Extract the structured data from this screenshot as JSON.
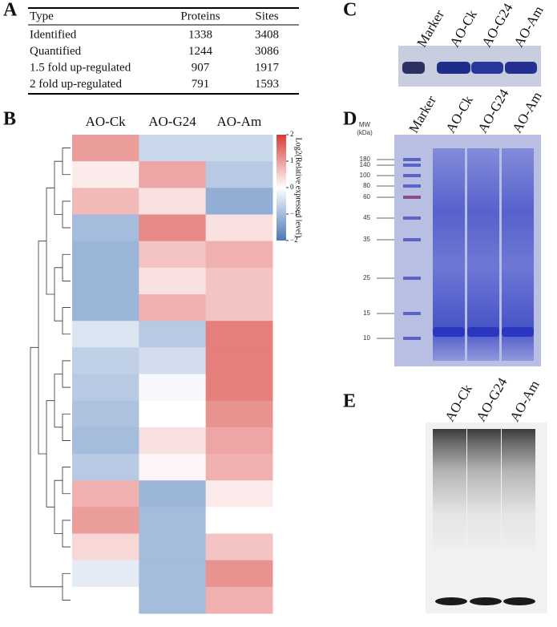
{
  "panels": {
    "A": {
      "label": "A",
      "table": {
        "header": [
          "Type",
          "Proteins",
          "Sites"
        ],
        "rows": [
          [
            "Identified",
            1338,
            3408
          ],
          [
            "Quantified",
            1244,
            3086
          ],
          [
            "1.5 fold up-regulated",
            907,
            1917
          ],
          [
            "2 fold up-regulated",
            791,
            1593
          ]
        ]
      }
    },
    "B": {
      "label": "B",
      "columns": [
        "AO-Ck",
        "AO-G24",
        "AO-Am"
      ],
      "colorbar": {
        "label": "Log2(Relative expressed level)",
        "lim": [
          -2,
          2
        ],
        "ticks": [
          2,
          1,
          0,
          {
            "value": -1,
            "label": "−1"
          },
          {
            "value": -2,
            "label": "−2"
          }
        ]
      },
      "rows": [
        [
          1.0,
          -0.6,
          -0.6
        ],
        [
          0.2,
          0.9,
          -0.8
        ],
        [
          0.7,
          0.3,
          -1.2
        ],
        [
          -1.0,
          1.2,
          0.3
        ],
        [
          -1.1,
          0.6,
          0.8
        ],
        [
          -1.1,
          0.3,
          0.6
        ],
        [
          -1.1,
          0.8,
          0.6
        ],
        [
          -0.4,
          -0.8,
          1.3
        ],
        [
          -0.7,
          -0.5,
          1.3
        ],
        [
          -0.8,
          -0.1,
          1.3
        ],
        [
          -0.9,
          0.0,
          1.1
        ],
        [
          -1.0,
          0.3,
          0.9
        ],
        [
          -0.8,
          0.1,
          0.8
        ],
        [
          0.8,
          -1.1,
          0.2
        ],
        [
          1.0,
          -1.0,
          0.0
        ],
        [
          0.4,
          -1.0,
          0.6
        ],
        [
          -0.3,
          -1.0,
          1.1
        ],
        [
          0.0,
          -1.0,
          0.8
        ]
      ]
    },
    "C": {
      "label": "C",
      "lanes": [
        "Marker",
        "AO-Ck",
        "AO-G24",
        "AO-Am"
      ]
    },
    "D": {
      "label": "D",
      "mw_label": "MW",
      "unit_label": "(kDa)",
      "lanes": [
        "Marker",
        "AO-Ck",
        "AO-G24",
        "AO-Am"
      ],
      "mw": [
        180,
        140,
        100,
        80,
        60,
        45,
        35,
        25,
        15,
        10
      ]
    },
    "E": {
      "label": "E",
      "lanes": [
        "AO-Ck",
        "AO-G24",
        "AO-Am"
      ]
    }
  }
}
